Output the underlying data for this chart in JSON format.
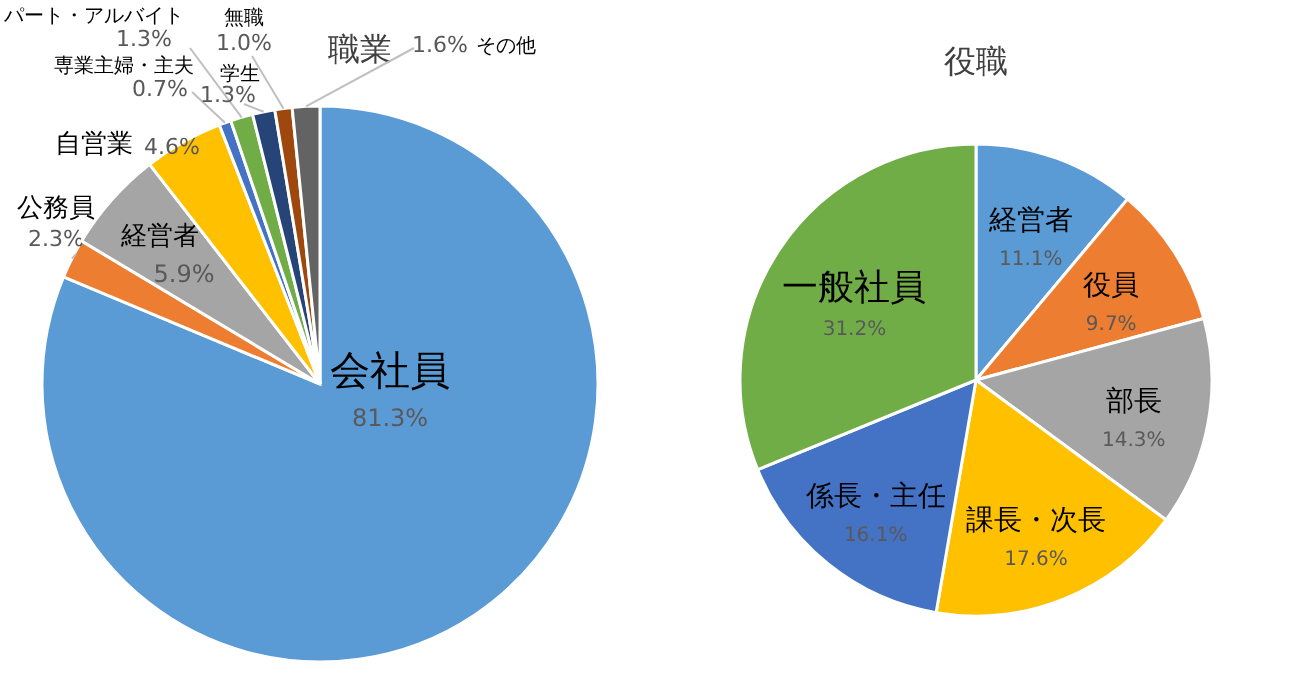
{
  "chart_data": [
    {
      "type": "pie",
      "title": "職業",
      "categories": [
        "会社員",
        "公務員",
        "経営者",
        "自営業",
        "専業主婦・主夫",
        "パート・アルバイト",
        "学生",
        "無職",
        "その他"
      ],
      "values": [
        81.3,
        2.3,
        5.9,
        4.6,
        0.7,
        1.3,
        1.3,
        1.0,
        1.6
      ],
      "colors": [
        "#5b9bd5",
        "#ed7d31",
        "#a5a5a5",
        "#ffc000",
        "#4472c4",
        "#70ad47",
        "#264478",
        "#9e480e",
        "#636363"
      ],
      "value_labels": [
        "81.3%",
        "2.3%",
        "5.9%",
        "4.6%",
        "0.7%",
        "1.3%",
        "1.3%",
        "1.0%",
        "1.6%"
      ]
    },
    {
      "type": "pie",
      "title": "役職",
      "categories": [
        "経営者",
        "役員",
        "部長",
        "課長・次長",
        "係長・主任",
        "一般社員"
      ],
      "values": [
        11.1,
        9.7,
        14.3,
        17.6,
        16.1,
        31.2
      ],
      "colors": [
        "#5b9bd5",
        "#ed7d31",
        "#a5a5a5",
        "#ffc000",
        "#4472c4",
        "#70ad47"
      ],
      "value_labels": [
        "11.1%",
        "9.7%",
        "14.3%",
        "17.6%",
        "16.1%",
        "31.2%"
      ]
    }
  ]
}
